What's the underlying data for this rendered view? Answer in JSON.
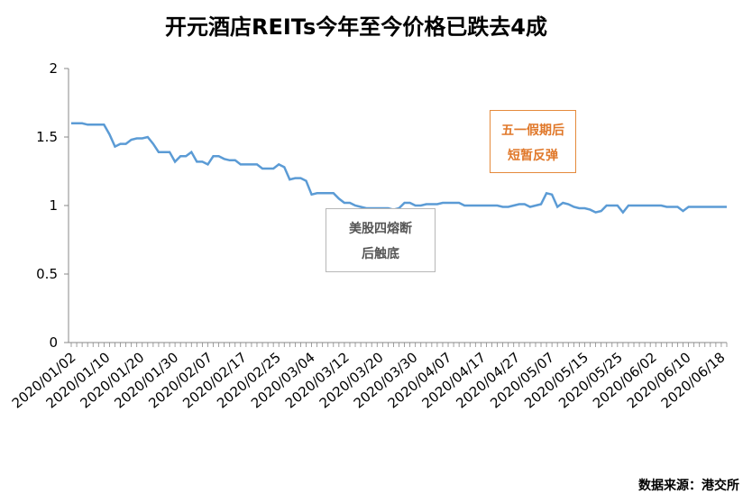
{
  "chart_data": {
    "type": "line",
    "title": "开元酒店REITs今年至今价格已跌去4成",
    "source": "数据来源：港交所",
    "ylim": [
      0,
      2
    ],
    "yticks": [
      "0",
      "0.5",
      "1",
      "1.5",
      "2"
    ],
    "xtick_labels": [
      "2020/01/02",
      "2020/01/10",
      "2020/01/20",
      "2020/01/30",
      "2020/02/07",
      "2020/02/17",
      "2020/02/25",
      "2020/03/04",
      "2020/03/12",
      "2020/03/20",
      "2020/03/30",
      "2020/04/07",
      "2020/04/17",
      "2020/04/27",
      "2020/05/07",
      "2020/05/15",
      "2020/05/25",
      "2020/06/02",
      "2020/06/10",
      "2020/06/18"
    ],
    "grid": false,
    "legend": "none",
    "line_color": "#5b9bd5",
    "series": [
      {
        "values": [
          1.6,
          1.6,
          1.6,
          1.59,
          1.59,
          1.59,
          1.59,
          1.52,
          1.43,
          1.45,
          1.45,
          1.48,
          1.49,
          1.49,
          1.5,
          1.45,
          1.39,
          1.39,
          1.39,
          1.32,
          1.36,
          1.36,
          1.39,
          1.32,
          1.32,
          1.3,
          1.36,
          1.36,
          1.34,
          1.33,
          1.33,
          1.3,
          1.3,
          1.3,
          1.3,
          1.27,
          1.27,
          1.27,
          1.3,
          1.28,
          1.19,
          1.2,
          1.2,
          1.18,
          1.08,
          1.09,
          1.09,
          1.09,
          1.09,
          1.05,
          1.02,
          1.02,
          1.0,
          0.99,
          0.98,
          0.98,
          0.98,
          0.98,
          0.98,
          0.97,
          0.98,
          1.02,
          1.02,
          1.0,
          1.0,
          1.01,
          1.01,
          1.01,
          1.02,
          1.02,
          1.02,
          1.02,
          1.0,
          1.0,
          1.0,
          1.0,
          1.0,
          1.0,
          1.0,
          0.99,
          0.99,
          1.0,
          1.01,
          1.01,
          0.99,
          1.0,
          1.01,
          1.09,
          1.08,
          0.99,
          1.02,
          1.01,
          0.99,
          0.98,
          0.98,
          0.97,
          0.95,
          0.96,
          1.0,
          1.0,
          1.0,
          0.95,
          1.0,
          1.0,
          1.0,
          1.0,
          1.0,
          1.0,
          1.0,
          0.99,
          0.99,
          0.99,
          0.96,
          0.99,
          0.99,
          0.99,
          0.99,
          0.99,
          0.99,
          0.99,
          0.99
        ]
      }
    ],
    "annotations": [
      {
        "lines": [
          "五一假期后",
          "短暂反弹"
        ],
        "color": "#e0782a"
      },
      {
        "lines": [
          "美股四熔断",
          "后触底"
        ],
        "color": "#555555"
      }
    ]
  }
}
